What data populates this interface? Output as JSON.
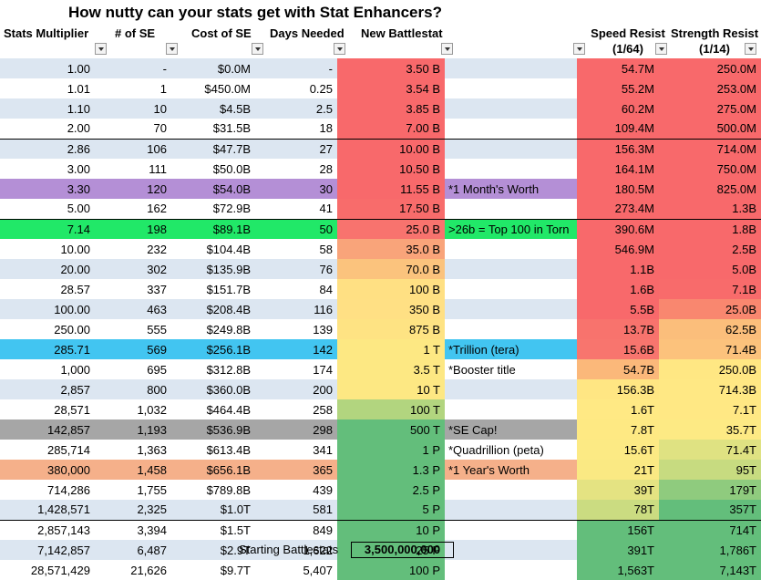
{
  "title": "How nutty can your stats get with Stat Enhancers?",
  "headers": {
    "mult": "Stats Multiplier",
    "se": "# of SE",
    "cost": "Cost of SE",
    "days": "Days Needed",
    "battle": "New Battlestat",
    "speed": "Speed Resist",
    "speed_sub": "(1/64)",
    "strength": "Strength Resist",
    "strength_sub": "(1/14)"
  },
  "colors": {
    "band_light": "#dce6f1",
    "highlight_purple": "#b48fd6",
    "highlight_green": "#21e868",
    "highlight_blue": "#42c5f1",
    "highlight_gray": "#a6a6a6",
    "highlight_orange": "#f5b08a"
  },
  "rows": [
    {
      "mult": "1.00",
      "se": "-",
      "cost": "$0.0M",
      "days": "-",
      "battle": "3.50 B",
      "note": "",
      "speed": "54.7M",
      "strength": "250.0M",
      "battle_color": "#f8696b",
      "speed_color": "#f8696b",
      "strength_color": "#f8696b",
      "hl": "band"
    },
    {
      "mult": "1.01",
      "se": "1",
      "cost": "$450.0M",
      "days": "0.25",
      "battle": "3.54 B",
      "note": "",
      "speed": "55.2M",
      "strength": "253.0M",
      "battle_color": "#f8696b",
      "speed_color": "#f8696b",
      "strength_color": "#f8696b",
      "hl": ""
    },
    {
      "mult": "1.10",
      "se": "10",
      "cost": "$4.5B",
      "days": "2.5",
      "battle": "3.85 B",
      "note": "",
      "speed": "60.2M",
      "strength": "275.0M",
      "battle_color": "#f8696b",
      "speed_color": "#f8696b",
      "strength_color": "#f8696b",
      "hl": "band"
    },
    {
      "mult": "2.00",
      "se": "70",
      "cost": "$31.5B",
      "days": "18",
      "battle": "7.00 B",
      "note": "",
      "speed": "109.4M",
      "strength": "500.0M",
      "battle_color": "#f8696b",
      "speed_color": "#f8696b",
      "strength_color": "#f8696b",
      "hl": ""
    },
    {
      "mult": "2.86",
      "se": "106",
      "cost": "$47.7B",
      "days": "27",
      "battle": "10.00 B",
      "note": "",
      "speed": "156.3M",
      "strength": "714.0M",
      "battle_color": "#f8696b",
      "speed_color": "#f8696b",
      "strength_color": "#f8696b",
      "hl": "band",
      "solid": true
    },
    {
      "mult": "3.00",
      "se": "111",
      "cost": "$50.0B",
      "days": "28",
      "battle": "10.50 B",
      "note": "",
      "speed": "164.1M",
      "strength": "750.0M",
      "battle_color": "#f8696b",
      "speed_color": "#f8696b",
      "strength_color": "#f8696b",
      "hl": ""
    },
    {
      "mult": "3.30",
      "se": "120",
      "cost": "$54.0B",
      "days": "30",
      "battle": "11.55 B",
      "note": "*1 Month's Worth",
      "speed": "180.5M",
      "strength": "825.0M",
      "battle_color": "#f8696b",
      "speed_color": "#f8696b",
      "strength_color": "#f8696b",
      "hl": "purple"
    },
    {
      "mult": "5.00",
      "se": "162",
      "cost": "$72.9B",
      "days": "41",
      "battle": "17.50 B",
      "note": "",
      "speed": "273.4M",
      "strength": "1.3B",
      "battle_color": "#f86c6b",
      "speed_color": "#f8696b",
      "strength_color": "#f8696b",
      "hl": ""
    },
    {
      "mult": "7.14",
      "se": "198",
      "cost": "$89.1B",
      "days": "50",
      "battle": "25.0 B",
      "note": ">26b = Top 100 in Torn",
      "speed": "390.6M",
      "strength": "1.8B",
      "battle_color": "#f8736e",
      "speed_color": "#f8696b",
      "strength_color": "#f8696b",
      "hl": "green",
      "solid": true
    },
    {
      "mult": "10.00",
      "se": "232",
      "cost": "$104.4B",
      "days": "58",
      "battle": "35.0 B",
      "note": "",
      "speed": "546.9M",
      "strength": "2.5B",
      "battle_color": "#f9a47a",
      "speed_color": "#f8696b",
      "strength_color": "#f8696b",
      "hl": ""
    },
    {
      "mult": "20.00",
      "se": "302",
      "cost": "$135.9B",
      "days": "76",
      "battle": "70.0 B",
      "note": "",
      "speed": "1.1B",
      "strength": "5.0B",
      "battle_color": "#fbc37d",
      "speed_color": "#f8696b",
      "strength_color": "#f8696b",
      "hl": "band"
    },
    {
      "mult": "28.57",
      "se": "337",
      "cost": "$151.7B",
      "days": "84",
      "battle": "100 B",
      "note": "",
      "speed": "1.6B",
      "strength": "7.1B",
      "battle_color": "#ffe083",
      "speed_color": "#f8696b",
      "strength_color": "#f86b6b",
      "hl": ""
    },
    {
      "mult": "100.00",
      "se": "463",
      "cost": "$208.4B",
      "days": "116",
      "battle": "350 B",
      "note": "",
      "speed": "5.5B",
      "strength": "25.0B",
      "battle_color": "#ffe084",
      "speed_color": "#f8696b",
      "strength_color": "#f9876f",
      "hl": "band"
    },
    {
      "mult": "250.00",
      "se": "555",
      "cost": "$249.8B",
      "days": "139",
      "battle": "875 B",
      "note": "",
      "speed": "13.7B",
      "strength": "62.5B",
      "battle_color": "#fee383",
      "speed_color": "#f8736d",
      "strength_color": "#fbbe7b",
      "hl": ""
    },
    {
      "mult": "285.71",
      "se": "569",
      "cost": "$256.1B",
      "days": "142",
      "battle": "1 T",
      "note": "*Trillion (tera)",
      "speed": "15.6B",
      "strength": "71.4B",
      "battle_color": "#fde883",
      "speed_color": "#f8756e",
      "strength_color": "#fcc27c",
      "hl": "blue"
    },
    {
      "mult": "1,000",
      "se": "695",
      "cost": "$312.8B",
      "days": "174",
      "battle": "3.5 T",
      "note": "*Booster title",
      "speed": "54.7B",
      "strength": "250.0B",
      "battle_color": "#fde883",
      "speed_color": "#fbb87a",
      "strength_color": "#ffe783",
      "hl": ""
    },
    {
      "mult": "2,857",
      "se": "800",
      "cost": "$360.0B",
      "days": "200",
      "battle": "10 T",
      "note": "",
      "speed": "156.3B",
      "strength": "714.3B",
      "battle_color": "#fde883",
      "speed_color": "#ffe683",
      "strength_color": "#ffe884",
      "hl": "band"
    },
    {
      "mult": "28,571",
      "se": "1,032",
      "cost": "$464.4B",
      "days": "258",
      "battle": "100 T",
      "note": "",
      "speed": "1.6T",
      "strength": "7.1T",
      "battle_color": "#b2d57f",
      "speed_color": "#ffe984",
      "strength_color": "#ffe884",
      "hl": ""
    },
    {
      "mult": "142,857",
      "se": "1,193",
      "cost": "$536.9B",
      "days": "298",
      "battle": "500 T",
      "note": "*SE Cap!",
      "speed": "7.8T",
      "strength": "35.7T",
      "battle_color": "#63be7b",
      "speed_color": "#fee983",
      "strength_color": "#fdea84",
      "hl": "gray"
    },
    {
      "mult": "285,714",
      "se": "1,363",
      "cost": "$613.4B",
      "days": "341",
      "battle": "1 P",
      "note": "*Quadrillion (peta)",
      "speed": "15.6T",
      "strength": "71.4T",
      "battle_color": "#63be7b",
      "speed_color": "#fcea84",
      "strength_color": "#dfe282",
      "hl": ""
    },
    {
      "mult": "380,000",
      "se": "1,458",
      "cost": "$656.1B",
      "days": "365",
      "battle": "1.3 P",
      "note": "*1 Year's Worth",
      "speed": "21T",
      "strength": "95T",
      "battle_color": "#63be7b",
      "speed_color": "#fae983",
      "strength_color": "#c7db80",
      "hl": "orange"
    },
    {
      "mult": "714,286",
      "se": "1,755",
      "cost": "$789.8B",
      "days": "439",
      "battle": "2.5 P",
      "note": "",
      "speed": "39T",
      "strength": "179T",
      "battle_color": "#63be7b",
      "speed_color": "#e4e382",
      "strength_color": "#8fcb7e",
      "hl": ""
    },
    {
      "mult": "1,428,571",
      "se": "2,325",
      "cost": "$1.0T",
      "days": "581",
      "battle": "5 P",
      "note": "",
      "speed": "78T",
      "strength": "357T",
      "battle_color": "#63be7b",
      "speed_color": "#cbdc81",
      "strength_color": "#63be7b",
      "hl": "band"
    },
    {
      "mult": "2,857,143",
      "se": "3,394",
      "cost": "$1.5T",
      "days": "849",
      "battle": "10 P",
      "note": "",
      "speed": "156T",
      "strength": "714T",
      "battle_color": "#63be7b",
      "speed_color": "#63be7b",
      "strength_color": "#63be7b",
      "hl": "",
      "solid": true
    },
    {
      "mult": "7,142,857",
      "se": "6,487",
      "cost": "$2.9T",
      "days": "1,622",
      "battle": "25 P",
      "note": "",
      "speed": "391T",
      "strength": "1,786T",
      "battle_color": "#63be7b",
      "speed_color": "#63be7b",
      "strength_color": "#63be7b",
      "hl": "band"
    },
    {
      "mult": "28,571,429",
      "se": "21,626",
      "cost": "$9.7T",
      "days": "5,407",
      "battle": "100 P",
      "note": "",
      "speed": "1,563T",
      "strength": "7,143T",
      "battle_color": "#63be7b",
      "speed_color": "#63be7b",
      "strength_color": "#63be7b",
      "hl": ""
    }
  ],
  "footer": {
    "label": "Starting Battlestats",
    "value": "3,500,000,000"
  }
}
